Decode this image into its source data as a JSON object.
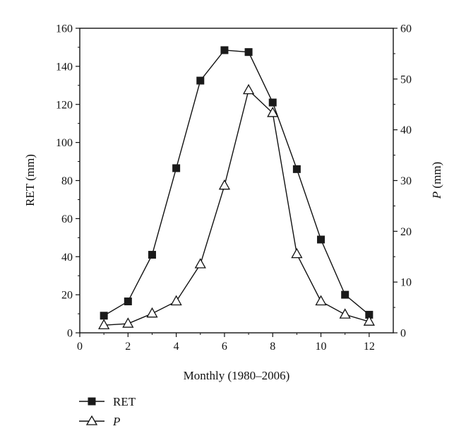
{
  "chart_data": {
    "type": "line",
    "title": "",
    "xlabel": "Monthly (1980–2006)",
    "ylabel_left": "RET (mm)",
    "ylabel_right_prefix": "P",
    "ylabel_right_suffix": " (mm)",
    "xlim": [
      0,
      13
    ],
    "xticks": [
      0,
      2,
      4,
      6,
      8,
      10,
      12
    ],
    "ylim_left": [
      0,
      160
    ],
    "yticks_left": [
      0,
      20,
      40,
      60,
      80,
      100,
      120,
      140,
      160
    ],
    "ylim_right": [
      0,
      60
    ],
    "yticks_right": [
      0,
      10,
      20,
      30,
      40,
      50,
      60
    ],
    "grid": false,
    "legend_position": "bottom-left, below chart",
    "series": [
      {
        "name": "RET",
        "axis": "left",
        "marker": "filled-square",
        "x": [
          1,
          2,
          3,
          4,
          5,
          6,
          7,
          8,
          9,
          10,
          11,
          12
        ],
        "values": [
          9,
          16.5,
          41,
          86.5,
          132.5,
          148.5,
          147.5,
          121,
          86,
          49,
          20,
          9.5
        ]
      },
      {
        "name": "P",
        "axis": "right",
        "marker": "open-triangle",
        "x": [
          1,
          2,
          3,
          4,
          5,
          6,
          7,
          8,
          9,
          10,
          11,
          12
        ],
        "values": [
          1.5,
          1.8,
          3.8,
          6.2,
          13.5,
          29,
          47.8,
          43.3,
          15.5,
          6.2,
          3.6,
          2.2
        ]
      }
    ]
  }
}
